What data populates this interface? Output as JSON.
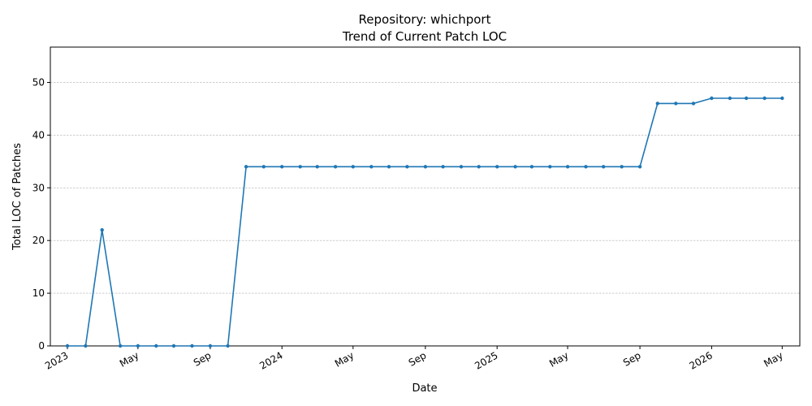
{
  "chart_data": {
    "type": "line",
    "title": "Repository: whichport",
    "subtitle": "Trend of Current Patch LOC",
    "xlabel": "Date",
    "ylabel": "Total LOC of Patches",
    "ylim": [
      0,
      56.7
    ],
    "xlim": [
      "2022-12-03",
      "2026-05-31"
    ],
    "grid": "y-dashed",
    "line_color": "#1f77b4",
    "yticks": [
      0,
      10,
      20,
      30,
      40,
      50
    ],
    "xticks": [
      {
        "date": "2023-01-01",
        "label": "2023"
      },
      {
        "date": "2023-05-01",
        "label": "May"
      },
      {
        "date": "2023-09-01",
        "label": "Sep"
      },
      {
        "date": "2024-01-01",
        "label": "2024"
      },
      {
        "date": "2024-05-01",
        "label": "May"
      },
      {
        "date": "2024-09-01",
        "label": "Sep"
      },
      {
        "date": "2025-01-01",
        "label": "2025"
      },
      {
        "date": "2025-05-01",
        "label": "May"
      },
      {
        "date": "2025-09-01",
        "label": "Sep"
      },
      {
        "date": "2026-01-01",
        "label": "2026"
      },
      {
        "date": "2026-05-01",
        "label": "May"
      }
    ],
    "series": [
      {
        "x": [
          "2023-01-01",
          "2023-02-01",
          "2023-03-01",
          "2023-04-01",
          "2023-05-01",
          "2023-06-01",
          "2023-07-01",
          "2023-08-01",
          "2023-09-01",
          "2023-10-01",
          "2023-11-01",
          "2023-12-01",
          "2024-01-01",
          "2024-02-01",
          "2024-03-01",
          "2024-04-01",
          "2024-05-01",
          "2024-06-01",
          "2024-07-01",
          "2024-08-01",
          "2024-09-01",
          "2024-10-01",
          "2024-11-01",
          "2024-12-01",
          "2025-01-01",
          "2025-02-01",
          "2025-03-01",
          "2025-04-01",
          "2025-05-01",
          "2025-06-01",
          "2025-07-01",
          "2025-08-01",
          "2025-09-01",
          "2025-10-01",
          "2025-11-01",
          "2025-12-01",
          "2026-01-01",
          "2026-02-01",
          "2026-03-01",
          "2026-04-01",
          "2026-05-01"
        ],
        "values": [
          0,
          0,
          22,
          0,
          0,
          0,
          0,
          0,
          0,
          0,
          34,
          34,
          34,
          34,
          34,
          34,
          34,
          34,
          34,
          34,
          34,
          34,
          34,
          34,
          34,
          34,
          34,
          34,
          34,
          34,
          34,
          34,
          34,
          46,
          46,
          46,
          47,
          47,
          47,
          47,
          47
        ]
      }
    ]
  }
}
